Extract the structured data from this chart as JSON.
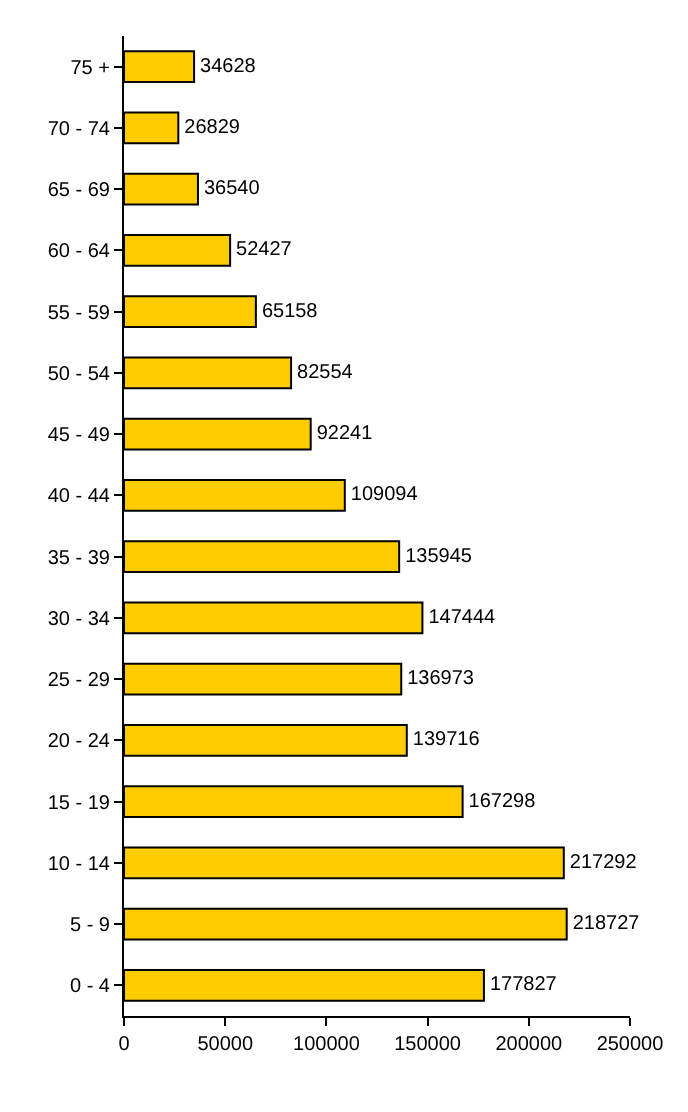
{
  "chart_data": {
    "type": "bar",
    "orientation": "horizontal",
    "categories": [
      "75 +",
      "70 - 74",
      "65 - 69",
      "60 - 64",
      "55 - 59",
      "50 - 54",
      "45 - 49",
      "40 - 44",
      "35 - 39",
      "30 - 34",
      "25 - 29",
      "20 - 24",
      "15 - 19",
      "10 - 14",
      "5 - 9",
      "0 - 4"
    ],
    "values": [
      34628,
      26829,
      36540,
      52427,
      65158,
      82554,
      92241,
      109094,
      135945,
      147444,
      136973,
      139716,
      167298,
      217292,
      218727,
      177827
    ],
    "color": "#ffcc00",
    "xlim": [
      0,
      250000
    ],
    "xticks": [
      0,
      50000,
      100000,
      150000,
      200000,
      250000
    ],
    "data_labels": true
  }
}
